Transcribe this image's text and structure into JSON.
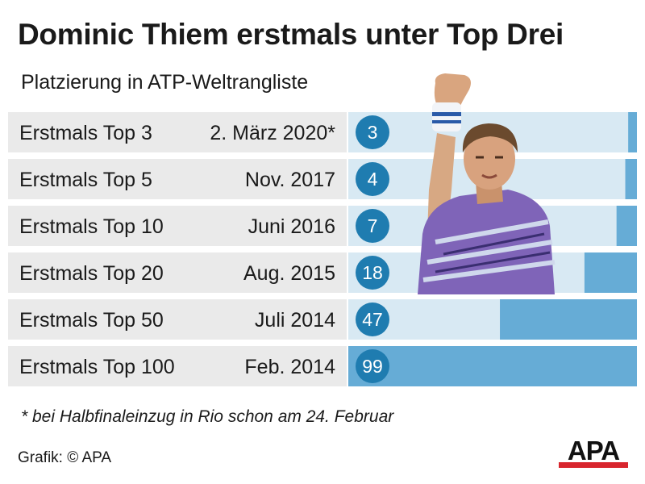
{
  "title": "Dominic Thiem erstmals unter Top Drei",
  "subtitle": "Platzierung in ATP-Weltrangliste",
  "footnote": "* bei Halbfinaleinzug in Rio schon am 24. Februar",
  "source": "Grafik: © APA",
  "logo_text": "APA",
  "colors": {
    "row_background": "#eaeaea",
    "bar_track": "#d8e9f3",
    "bar_fill": "#66acd6",
    "circle": "#1f7cb0",
    "logo_red": "#d8262e"
  },
  "chart_data": {
    "type": "bar",
    "orientation": "horizontal",
    "rows": [
      {
        "label": "Erstmals Top 3",
        "date": "2. März 2020*",
        "rank": 3
      },
      {
        "label": "Erstmals Top 5",
        "date": "Nov. 2017",
        "rank": 4
      },
      {
        "label": "Erstmals Top 10",
        "date": "Juni 2016",
        "rank": 7
      },
      {
        "label": "Erstmals Top 20",
        "date": "Aug. 2015",
        "rank": 18
      },
      {
        "label": "Erstmals Top 50",
        "date": "Juli 2014",
        "rank": 47
      },
      {
        "label": "Erstmals Top 100",
        "date": "Feb. 2014",
        "rank": 99
      }
    ],
    "value_range": [
      0,
      99
    ]
  }
}
